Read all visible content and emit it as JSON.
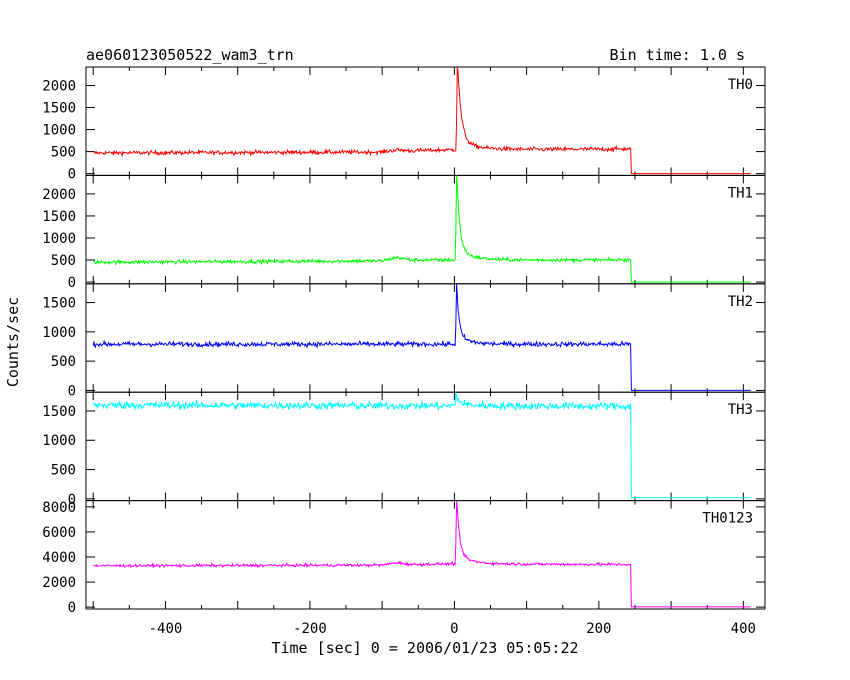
{
  "header": {
    "title": "ae060123050522_wam3_trn",
    "bin_time": "Bin time: 1.0 s"
  },
  "chart_data": {
    "type": "line",
    "title": "ae060123050522_wam3_trn",
    "subtitle": "Bin time: 1.0 s",
    "xlabel": "Time [sec] 0 = 2006/01/23 05:05:22",
    "ylabel": "Counts/sec",
    "xlim": [
      -510,
      430
    ],
    "xticks": [
      -400,
      -200,
      0,
      200,
      400
    ],
    "grid": false,
    "panels": [
      {
        "name": "TH0",
        "color": "#ff0000",
        "ylim": [
          -40,
          2420
        ],
        "yticks": [
          0,
          500,
          1000,
          1500,
          2000
        ],
        "baseline": 470,
        "noise": 45,
        "drift": [
          [
            -500,
            470
          ],
          [
            -100,
            490
          ],
          [
            -80,
            540
          ],
          [
            -60,
            520
          ],
          [
            -10,
            540
          ],
          [
            245,
            560
          ]
        ],
        "peak": {
          "t": 4,
          "height": 1950,
          "decay": 5,
          "tail_height": 200,
          "tail_decay": 25
        },
        "cutoff": 245,
        "after_cutoff": 0,
        "end": 410
      },
      {
        "name": "TH1",
        "color": "#00ff00",
        "ylim": [
          -40,
          2420
        ],
        "yticks": [
          0,
          500,
          1000,
          1500,
          2000
        ],
        "baseline": 450,
        "noise": 40,
        "drift": [
          [
            -500,
            450
          ],
          [
            -100,
            480
          ],
          [
            -80,
            560
          ],
          [
            -60,
            500
          ],
          [
            -10,
            500
          ],
          [
            245,
            500
          ]
        ],
        "peak": {
          "t": 3,
          "height": 1850,
          "decay": 4,
          "tail_height": 250,
          "tail_decay": 20
        },
        "cutoff": 245,
        "after_cutoff": 0,
        "end": 410
      },
      {
        "name": "TH2",
        "color": "#0000ff",
        "ylim": [
          -30,
          1820
        ],
        "yticks": [
          0,
          500,
          1000,
          1500
        ],
        "baseline": 790,
        "noise": 40,
        "drift": [
          [
            -500,
            790
          ],
          [
            245,
            790
          ]
        ],
        "peak": {
          "t": 3,
          "height": 900,
          "decay": 3,
          "tail_height": 180,
          "tail_decay": 15
        },
        "cutoff": 245,
        "after_cutoff": 0,
        "end": 410
      },
      {
        "name": "TH3",
        "color": "#00ffff",
        "ylim": [
          -30,
          1820
        ],
        "yticks": [
          0,
          500,
          1000,
          1500
        ],
        "baseline": 1600,
        "noise": 65,
        "drift": [
          [
            -500,
            1600
          ],
          [
            245,
            1580
          ]
        ],
        "peak": {
          "t": 2,
          "height": 150,
          "decay": 4,
          "tail_height": 50,
          "tail_decay": 20
        },
        "cutoff": 245,
        "after_cutoff": 20,
        "end": 410
      },
      {
        "name": "TH0123",
        "color": "#ff00ff",
        "ylim": [
          -150,
          8500
        ],
        "yticks": [
          0,
          2000,
          4000,
          6000,
          8000
        ],
        "baseline": 3300,
        "noise": 110,
        "drift": [
          [
            -500,
            3300
          ],
          [
            -100,
            3350
          ],
          [
            -80,
            3550
          ],
          [
            -60,
            3400
          ],
          [
            -10,
            3450
          ],
          [
            245,
            3400
          ]
        ],
        "peak": {
          "t": 3,
          "height": 4700,
          "decay": 4,
          "tail_height": 700,
          "tail_decay": 20
        },
        "cutoff": 245,
        "after_cutoff": 20,
        "end": 410
      }
    ]
  }
}
